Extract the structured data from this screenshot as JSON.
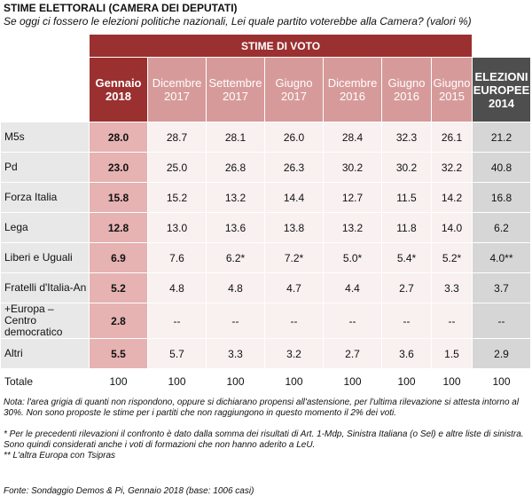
{
  "title": "STIME ELETTORALI (CAMERA DEI DEPUTATI)",
  "subtitle": "Se oggi ci fossero le elezioni politiche nazionali, Lei quale partito voterebbe alla Camera? (valori %)",
  "band_label": "STIME DI VOTO",
  "columns": [
    {
      "label": "Gennaio 2018"
    },
    {
      "label": "Dicembre 2017"
    },
    {
      "label": "Settembre 2017"
    },
    {
      "label": "Giugno 2017"
    },
    {
      "label": "Dicembre 2016"
    },
    {
      "label": "Giugno 2016"
    },
    {
      "label": "Giugno 2015"
    },
    {
      "label": "ELEZIONI EUROPEE 2014"
    }
  ],
  "rows": [
    {
      "party": "M5s",
      "values": [
        "28.0",
        "28.7",
        "28.1",
        "26.0",
        "28.4",
        "32.3",
        "26.1",
        "21.2"
      ]
    },
    {
      "party": "Pd",
      "values": [
        "23.0",
        "25.0",
        "26.8",
        "26.3",
        "30.2",
        "30.2",
        "32.2",
        "40.8"
      ]
    },
    {
      "party": "Forza Italia",
      "values": [
        "15.8",
        "15.2",
        "13.2",
        "14.4",
        "12.7",
        "11.5",
        "14.2",
        "16.8"
      ]
    },
    {
      "party": "Lega",
      "values": [
        "12.8",
        "13.0",
        "13.6",
        "13.8",
        "13.2",
        "11.8",
        "14.0",
        "6.2"
      ]
    },
    {
      "party": "Liberi e Uguali",
      "values": [
        "6.9",
        "7.6",
        "6.2*",
        "7.2*",
        "5.0*",
        "5.4*",
        "5.2*",
        "4.0**"
      ]
    },
    {
      "party": "Fratelli d'Italia-An",
      "values": [
        "5.2",
        "4.8",
        "4.8",
        "4.7",
        "4.4",
        "2.7",
        "3.3",
        "3.7"
      ]
    },
    {
      "party": "+Europa – Centro democratico",
      "values": [
        "2.8",
        "--",
        "--",
        "--",
        "--",
        "--",
        "--",
        "--"
      ]
    },
    {
      "party": "Altri",
      "values": [
        "5.5",
        "5.7",
        "3.3",
        "3.2",
        "2.7",
        "3.6",
        "1.5",
        "2.9"
      ]
    }
  ],
  "total": {
    "label": "Totale",
    "values": [
      "100",
      "100",
      "100",
      "100",
      "100",
      "100",
      "100",
      "100"
    ]
  },
  "notes": {
    "note1": "Nota: l'area grigia di quanti non rispondono, oppure si dichiarano propensi all'astensione, per l'ultima rilevazione si attesta intorno al 30%. Non sono proposte le stime per i partiti che non raggiungono in questo momento il 2% dei voti.",
    "note2": "* Per le precedenti rilevazioni il confronto è dato dalla somma dei risultati di Art. 1-Mdp, Sinistra Italiana (o Sel) e altre liste di sinistra. Sono quindi considerati anche i voti di formazioni che non hanno aderito a LeU.",
    "note3": "** L'altra Europa con Tsipras"
  },
  "source": "Fonte: Sondaggio Demos & Pi, Gennaio 2018 (base: 1006 casi)",
  "colors": {
    "current": "#9b3030",
    "past_header": "#d79a9a",
    "current_cell": "#e6b2b2",
    "euro_header": "#4e4e4e",
    "euro_cell": "#d6d6d6"
  }
}
